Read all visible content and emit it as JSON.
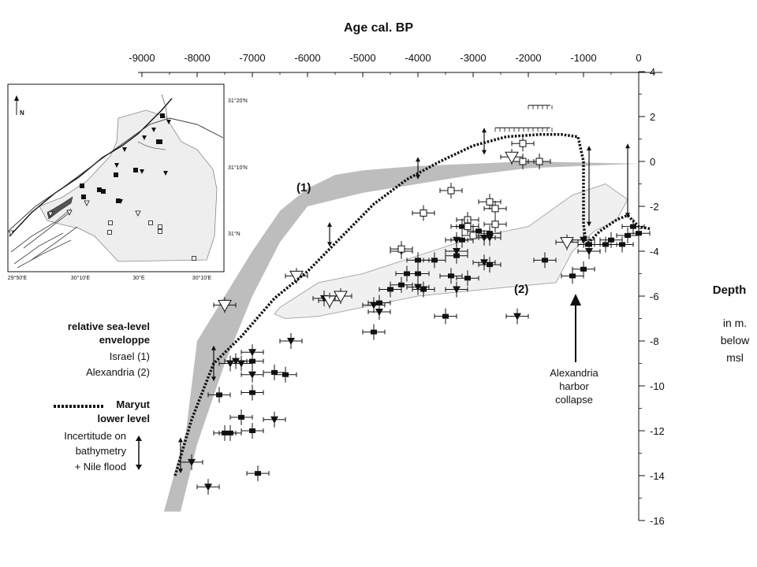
{
  "chart_data": {
    "type": "scatter",
    "title": "Age cal. BP",
    "ylabel": "Depth",
    "ylabel_units": [
      "in m.",
      "below",
      "msl"
    ],
    "xlim": [
      -9000,
      0
    ],
    "ylim": [
      -16,
      4
    ],
    "x_ticks": [
      -9000,
      -8000,
      -7000,
      -6000,
      -5000,
      -4000,
      -3000,
      -2000,
      -1000,
      0
    ],
    "y_ticks": [
      4,
      2,
      0,
      -2,
      -4,
      -6,
      -8,
      -10,
      -12,
      -14,
      -16
    ],
    "y_tick_labels": [
      "4",
      "2",
      "0",
      "-2",
      "-4",
      "-6",
      "-8",
      "-10",
      "-12",
      "-14",
      "-16"
    ],
    "envelope_labels": [
      "(1)",
      "(2)"
    ],
    "annotation": [
      "Alexandria",
      "harbor",
      "collapse"
    ],
    "legend": {
      "envelope_title": [
        "relative sea-level",
        "enveloppe"
      ],
      "envelope_items": [
        "Israel (1)",
        "Alexandria (2)"
      ],
      "line_title": [
        "Maryut",
        "lower level"
      ],
      "uncertainty": [
        "Incertitude on",
        "bathymetry",
        "+ Nile flood"
      ]
    },
    "series": [
      {
        "marker": "filled-square",
        "points": [
          [
            -7600,
            -10.4
          ],
          [
            -7500,
            -12.1
          ],
          [
            -7400,
            -12.1
          ],
          [
            -7200,
            -11.4
          ],
          [
            -7000,
            -12.0
          ],
          [
            -7000,
            -10.3
          ],
          [
            -7000,
            -8.9
          ],
          [
            -6900,
            -13.9
          ],
          [
            -6600,
            -9.4
          ],
          [
            -6400,
            -9.5
          ],
          [
            -4800,
            -7.6
          ],
          [
            -4700,
            -6.3
          ],
          [
            -4500,
            -5.7
          ],
          [
            -4300,
            -5.5
          ],
          [
            -4200,
            -5.0
          ],
          [
            -4000,
            -5.0
          ],
          [
            -4000,
            -4.4
          ],
          [
            -3900,
            -5.7
          ],
          [
            -3700,
            -4.4
          ],
          [
            -3500,
            -6.9
          ],
          [
            -3400,
            -5.1
          ],
          [
            -3300,
            -4.2
          ],
          [
            -3200,
            -3.5
          ],
          [
            -3200,
            -2.9
          ],
          [
            -3100,
            -5.2
          ],
          [
            -2900,
            -3.1
          ],
          [
            -2700,
            -3.2
          ],
          [
            -2700,
            -4.6
          ],
          [
            -1700,
            -4.4
          ],
          [
            -1200,
            -5.1
          ],
          [
            -1000,
            -4.8
          ],
          [
            -900,
            -3.7
          ],
          [
            -600,
            -3.7
          ],
          [
            -500,
            -3.5
          ],
          [
            -300,
            -3.7
          ],
          [
            -200,
            -3.3
          ],
          [
            -100,
            -2.9
          ],
          [
            0,
            -3.2
          ]
        ]
      },
      {
        "marker": "filled-triangle",
        "points": [
          [
            -8100,
            -13.4
          ],
          [
            -7800,
            -14.5
          ],
          [
            -7400,
            -9.0
          ],
          [
            -7300,
            -8.9
          ],
          [
            -7200,
            -9.0
          ],
          [
            -7000,
            -8.5
          ],
          [
            -7000,
            -9.5
          ],
          [
            -6600,
            -11.5
          ],
          [
            -6300,
            -8.0
          ],
          [
            -5700,
            -6.1
          ],
          [
            -4800,
            -6.4
          ],
          [
            -4700,
            -6.7
          ],
          [
            -4300,
            -4.0
          ],
          [
            -4000,
            -5.6
          ],
          [
            -3900,
            -5.7
          ],
          [
            -3300,
            -5.7
          ],
          [
            -3300,
            -3.5
          ],
          [
            -3300,
            -4.0
          ],
          [
            -2800,
            -4.5
          ],
          [
            -2800,
            -3.4
          ],
          [
            -2700,
            -3.4
          ],
          [
            -2200,
            -6.9
          ],
          [
            -1000,
            -3.5
          ],
          [
            -900,
            -4.0
          ]
        ]
      },
      {
        "marker": "open-square",
        "points": [
          [
            -4300,
            -3.9
          ],
          [
            -3900,
            -2.3
          ],
          [
            -3400,
            -1.3
          ],
          [
            -3100,
            -2.6
          ],
          [
            -3100,
            -2.9
          ],
          [
            -3000,
            -3.3
          ],
          [
            -2700,
            -1.8
          ],
          [
            -2600,
            -2.1
          ],
          [
            -2600,
            -2.8
          ],
          [
            -2100,
            0.8
          ],
          [
            -2100,
            0.0
          ],
          [
            -1800,
            0.0
          ]
        ]
      },
      {
        "marker": "open-triangle",
        "points": [
          [
            -6200,
            -5.1
          ],
          [
            -5600,
            -6.2
          ],
          [
            -5400,
            -6.0
          ],
          [
            -2300,
            0.2
          ],
          [
            -1300,
            -3.6
          ],
          [
            -7500,
            -6.4
          ]
        ]
      }
    ],
    "uncertainty_intervals": [
      [
        -8300,
        -12.3,
        -13.9
      ],
      [
        -7700,
        -8.2,
        -9.8
      ],
      [
        -5600,
        -2.7,
        -3.8
      ],
      [
        -4000,
        0.2,
        -0.8
      ],
      [
        -2800,
        1.5,
        0.3
      ],
      [
        -900,
        0.7,
        -2.9
      ],
      [
        -200,
        0.8,
        -2.5
      ]
    ],
    "envelope_1_israel": {
      "upper": [
        [
          -8000,
          -8.0
        ],
        [
          -7500,
          -6.0
        ],
        [
          -7000,
          -4.0
        ],
        [
          -6500,
          -2.2
        ],
        [
          -6000,
          -1.2
        ],
        [
          -5500,
          -0.6
        ],
        [
          -5000,
          -0.4
        ],
        [
          -4000,
          -0.2
        ],
        [
          -3000,
          -0.1
        ],
        [
          -2000,
          0.0
        ],
        [
          0,
          -0.1
        ]
      ],
      "lower": [
        [
          0,
          -0.1
        ],
        [
          -2000,
          -0.3
        ],
        [
          -3000,
          -0.6
        ],
        [
          -4000,
          -1.0
        ],
        [
          -5000,
          -1.4
        ],
        [
          -6000,
          -2.0
        ],
        [
          -6500,
          -3.6
        ],
        [
          -7000,
          -6.0
        ],
        [
          -7500,
          -9.0
        ],
        [
          -8000,
          -12.6
        ],
        [
          -8300,
          -15.6
        ],
        [
          -8600,
          -15.6
        ],
        [
          -8200,
          -12.0
        ]
      ]
    },
    "envelope_2_alexandria": [
      [
        -6500,
        -6.5
      ],
      [
        -5800,
        -5.4
      ],
      [
        -5000,
        -5.0
      ],
      [
        -4000,
        -4.2
      ],
      [
        -3000,
        -3.4
      ],
      [
        -2000,
        -2.9
      ],
      [
        -1200,
        -1.5
      ],
      [
        -600,
        -1.0
      ],
      [
        -200,
        -1.7
      ],
      [
        -400,
        -2.6
      ],
      [
        -800,
        -3.1
      ],
      [
        -1200,
        -4.0
      ],
      [
        -1500,
        -5.4
      ],
      [
        -2800,
        -5.7
      ],
      [
        -4000,
        -6.0
      ],
      [
        -5000,
        -6.5
      ],
      [
        -5800,
        -6.9
      ],
      [
        -6400,
        -7.0
      ],
      [
        -6600,
        -6.8
      ]
    ],
    "maryut_lower_level": [
      [
        -8400,
        -14.0
      ],
      [
        -8100,
        -11.5
      ],
      [
        -7700,
        -9.0
      ],
      [
        -7200,
        -7.8
      ],
      [
        -6600,
        -6.1
      ],
      [
        -6000,
        -4.9
      ],
      [
        -5400,
        -3.4
      ],
      [
        -4800,
        -1.9
      ],
      [
        -4200,
        -0.8
      ],
      [
        -3600,
        0.0
      ],
      [
        -3000,
        0.7
      ],
      [
        -2400,
        1.1
      ],
      [
        -1800,
        1.2
      ],
      [
        -1400,
        1.2
      ],
      [
        -1100,
        1.1
      ],
      [
        -1000,
        0.0
      ],
      [
        -1000,
        -2.8
      ],
      [
        -950,
        -3.7
      ],
      [
        -700,
        -3.1
      ],
      [
        -400,
        -2.6
      ],
      [
        -200,
        -2.4
      ],
      [
        0,
        -2.9
      ],
      [
        200,
        -3.0
      ]
    ],
    "hatched_markers": [
      [
        -2100,
        1.5,
        1000
      ],
      [
        -1800,
        2.5,
        400
      ]
    ]
  },
  "map_inset": {
    "north_label": "N",
    "lat_labels": [
      "31°20'N",
      "31°10'N",
      "31°N"
    ],
    "lon_labels": [
      "29°50'E",
      "30°10'E",
      "30°E",
      "30°10'E"
    ]
  }
}
